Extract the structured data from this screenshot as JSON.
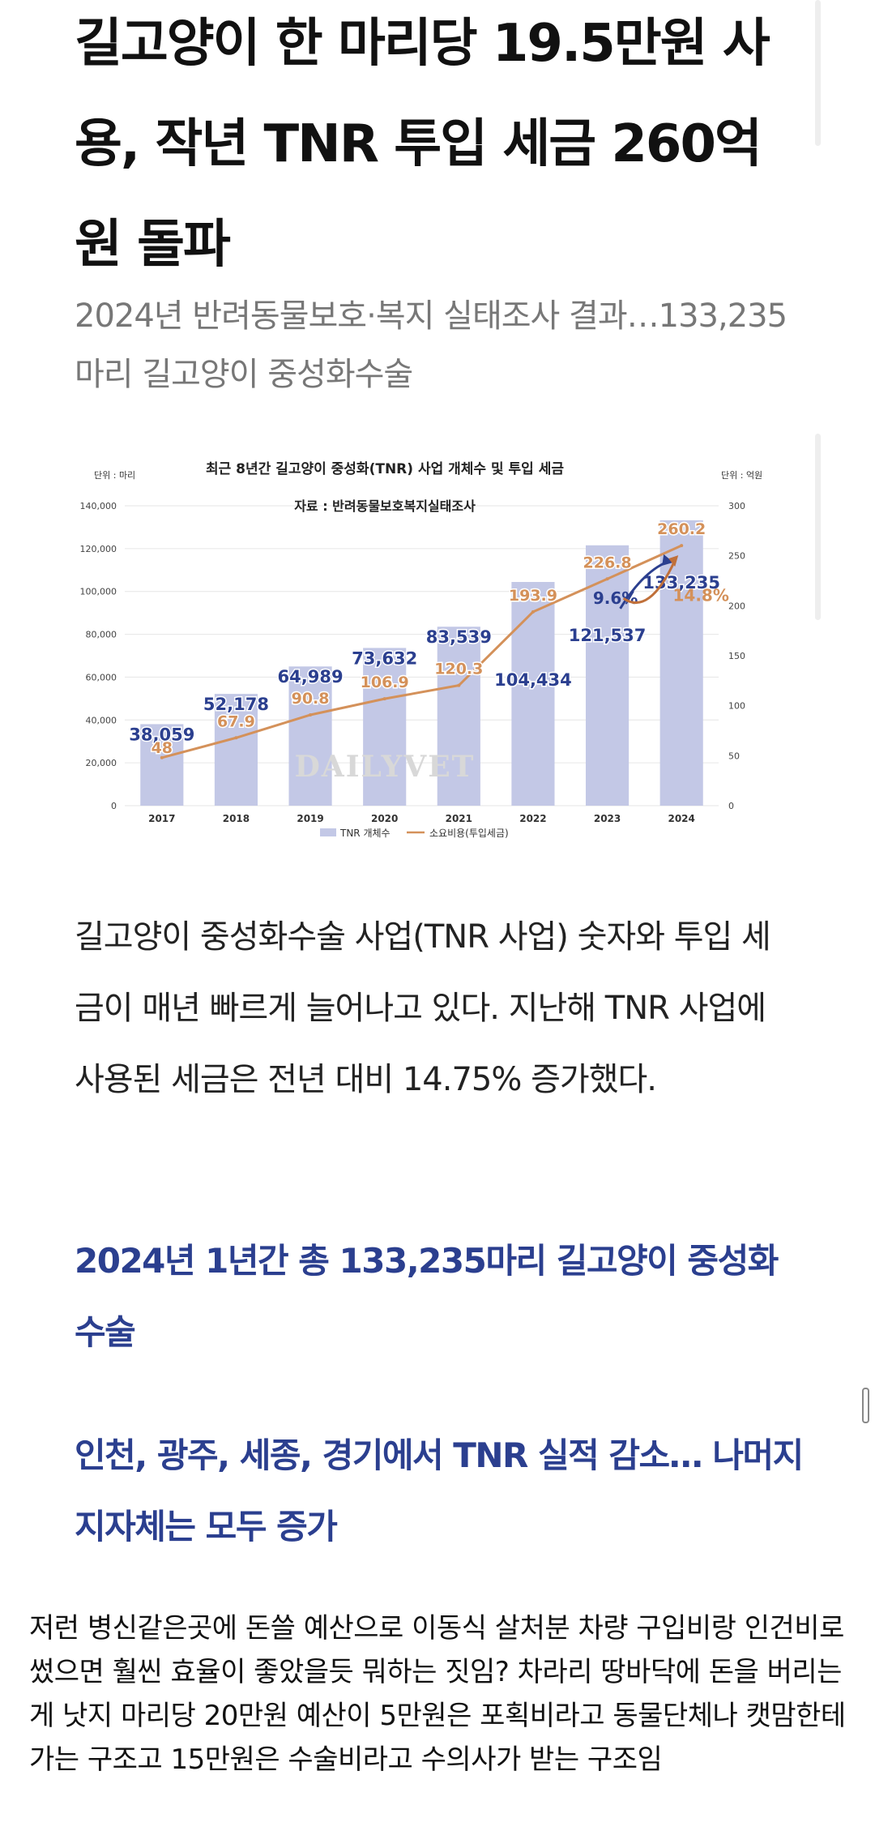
{
  "article": {
    "headline": "길고양이 한 마리당 19.5만원 사용, 작년 TNR 투입 세금 260억원 돌파",
    "subhead": "2024년 반려동물보호·복지 실태조사 결과…133,235마리 길고양이 중성화수술",
    "body": "길고양이 중성화수술 사업(TNR 사업) 숫자와 투입 세금이 매년 빠르게 늘어나고 있다. 지난해 TNR 사업에 사용된 세금은 전년 대비 14.75% 증가했다.",
    "section_1": "2024년 1년간 총 133,235마리 길고양이 중성화수술",
    "section_2": "인천, 광주, 세종, 경기에서 TNR 실적 감소… 나머지 지자체는 모두 증가"
  },
  "comment": {
    "text": "저런 병신같은곳에 돈쓸 예산으로 이동식 살처분 차량 구입비랑 인건비로 썼으면 훨씬 효율이 좋았을듯 뭐하는 짓임? 차라리 땅바닥에 돈을 버리는게 낫지 마리당 20만원 예산이 5만원은 포획비라고 동물단체나 캣맘한테 가는 구조고 15만원은 수술비라고 수의사가 받는 구조임"
  },
  "colors": {
    "bar": "#c3c8e6",
    "line": "#d4915a",
    "count_label": "#2b3f8f",
    "cost_label": "#d4915a"
  },
  "chart_data": {
    "type": "bar",
    "title": "최근 8년간 길고양이 중성화(TNR) 사업 개체수 및 투입 세금",
    "source": "자료 : 반려동물보호복지실태조사",
    "watermark": "DAILYVET",
    "left_unit": "단위 : 마리",
    "right_unit": "단위 : 억원",
    "categories": [
      "2017",
      "2018",
      "2019",
      "2020",
      "2021",
      "2022",
      "2023",
      "2024"
    ],
    "ylim": [
      0,
      140000
    ],
    "y2lim": [
      0,
      300
    ],
    "y_ticks": [
      "0",
      "20,000",
      "40,000",
      "60,000",
      "80,000",
      "100,000",
      "120,000",
      "140,000"
    ],
    "y2_ticks": [
      "0",
      "50",
      "100",
      "150",
      "200",
      "250",
      "300"
    ],
    "series": [
      {
        "name": "TNR 개체수",
        "kind": "bar",
        "axis": "left",
        "values": [
          38059,
          52178,
          64989,
          73632,
          83539,
          104434,
          121537,
          133235
        ],
        "labels": [
          "38,059",
          "52,178",
          "64,989",
          "73,632",
          "83,539",
          "104,434",
          "121,537",
          "133,235"
        ]
      },
      {
        "name": "소요비용(투입세금)",
        "kind": "line",
        "axis": "right",
        "values": [
          48,
          67.9,
          90.8,
          106.9,
          120.3,
          193.9,
          226.8,
          260.2
        ],
        "labels": [
          "48",
          "67.9",
          "90.8",
          "106.9",
          "120.3",
          "193.9",
          "226.8",
          "260.2"
        ]
      }
    ],
    "annotations": [
      {
        "text": "9.6%",
        "target": "count"
      },
      {
        "text": "14.8%",
        "target": "cost"
      }
    ]
  }
}
